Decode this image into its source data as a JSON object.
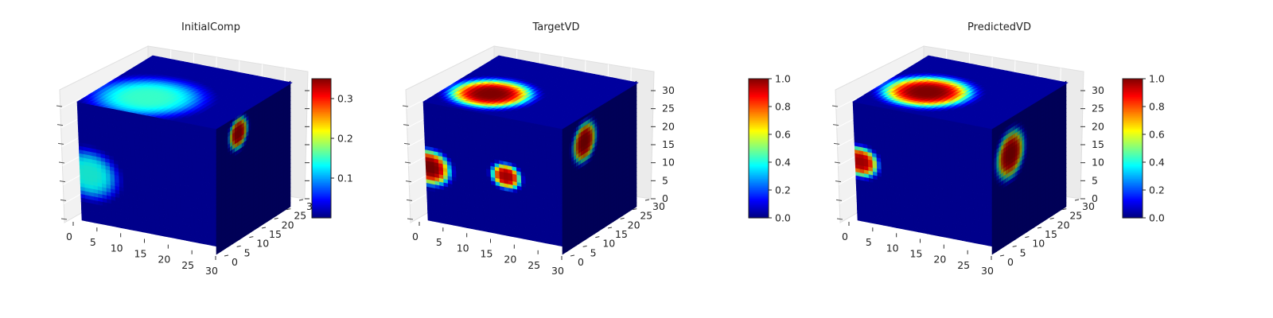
{
  "chart_data": [
    {
      "type": "3d-voxel",
      "title": "InitialComp",
      "colormap": "jet",
      "colorbar": {
        "min": 0.0,
        "max": 0.35,
        "ticks": [
          0.1,
          0.2,
          0.3
        ],
        "tick_labels": [
          "0.1",
          "0.2",
          "0.3"
        ]
      },
      "x_ticks": [
        "0",
        "5",
        "10",
        "15",
        "20",
        "25",
        "30"
      ],
      "y_ticks": [
        "0",
        "5",
        "10",
        "15",
        "20",
        "25",
        "30"
      ],
      "z_ticks": [],
      "features": [
        {
          "face": "top",
          "u": 0.35,
          "v": 0.3,
          "r": 0.35,
          "value": 0.15
        },
        {
          "face": "front",
          "u": 0.07,
          "v": 0.6,
          "r": 0.2,
          "value": 0.14
        },
        {
          "face": "right",
          "u": 0.3,
          "v": 0.15,
          "r": 0.12,
          "value": 0.33
        }
      ]
    },
    {
      "type": "3d-voxel",
      "title": "TargetVD",
      "colormap": "jet",
      "colorbar": {
        "min": 0.0,
        "max": 1.0,
        "ticks": [
          0.0,
          0.2,
          0.4,
          0.6,
          0.8,
          1.0
        ],
        "tick_labels": [
          "0.0",
          "0.2",
          "0.4",
          "0.6",
          "0.8",
          "1.0"
        ]
      },
      "x_ticks": [
        "0",
        "5",
        "10",
        "15",
        "20",
        "25",
        "30"
      ],
      "y_ticks": [
        "0",
        "5",
        "10",
        "15",
        "20",
        "25",
        "30"
      ],
      "z_ticks": [
        "0",
        "5",
        "10",
        "15",
        "20",
        "25",
        "30"
      ],
      "features": [
        {
          "face": "top",
          "u": 0.3,
          "v": 0.35,
          "r": 0.25,
          "value": 1.0
        },
        {
          "face": "front",
          "u": 0.03,
          "v": 0.55,
          "r": 0.14,
          "value": 1.0
        },
        {
          "face": "front",
          "u": 0.58,
          "v": 0.5,
          "r": 0.1,
          "value": 0.95
        },
        {
          "face": "right",
          "u": 0.3,
          "v": 0.22,
          "r": 0.15,
          "value": 0.95
        }
      ]
    },
    {
      "type": "3d-voxel",
      "title": "PredictedVD",
      "colormap": "jet",
      "colorbar": {
        "min": 0.0,
        "max": 1.0,
        "ticks": [
          0.0,
          0.2,
          0.4,
          0.6,
          0.8,
          1.0
        ],
        "tick_labels": [
          "0.0",
          "0.2",
          "0.4",
          "0.6",
          "0.8",
          "1.0"
        ]
      },
      "x_ticks": [
        "0",
        "5",
        "10",
        "15",
        "20",
        "25",
        "30"
      ],
      "y_ticks": [
        "0",
        "5",
        "10",
        "15",
        "20",
        "25",
        "30"
      ],
      "z_ticks": [
        "0",
        "5",
        "10",
        "15",
        "20",
        "25",
        "30"
      ],
      "features": [
        {
          "face": "top",
          "u": 0.32,
          "v": 0.4,
          "r": 0.27,
          "value": 1.0
        },
        {
          "face": "front",
          "u": 0.04,
          "v": 0.5,
          "r": 0.12,
          "value": 0.95
        },
        {
          "face": "right",
          "u": 0.25,
          "v": 0.3,
          "r": 0.18,
          "value": 0.95
        }
      ]
    }
  ]
}
